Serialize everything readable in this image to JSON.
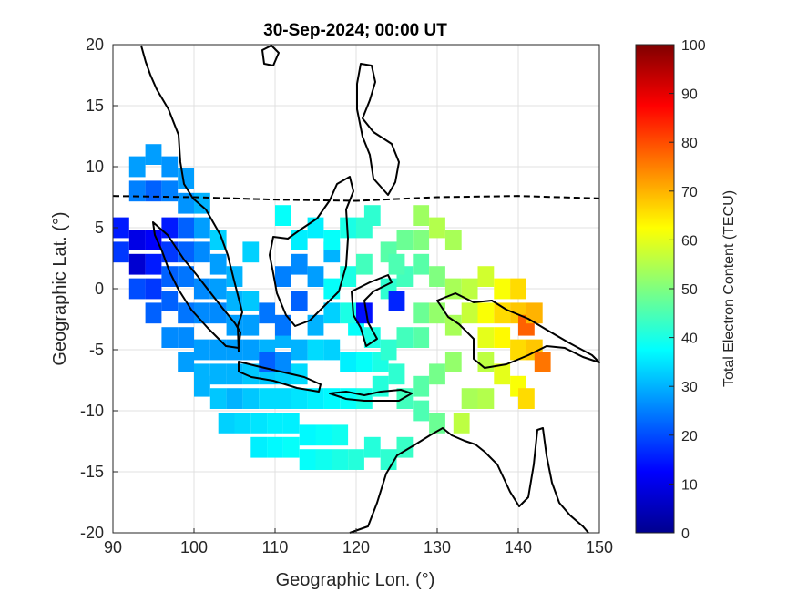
{
  "chart_data": {
    "type": "heatmap",
    "title": "30-Sep-2024; 00:00 UT",
    "xlabel": "Geographic Lon. (°)",
    "ylabel": "Geographic Lat. (°)",
    "xlim": [
      90,
      150
    ],
    "ylim": [
      -20,
      20
    ],
    "x_ticks": [
      90,
      100,
      110,
      120,
      130,
      140,
      150
    ],
    "y_ticks": [
      20,
      15,
      10,
      5,
      0,
      -5,
      -10,
      -15,
      -20
    ],
    "x_tick_labels": [
      "90",
      "100",
      "110",
      "120",
      "130",
      "140",
      "150"
    ],
    "y_tick_labels": [
      "20",
      "15",
      "10",
      "5",
      "0",
      "-5",
      "-10",
      "-15",
      "-20"
    ],
    "grid": true,
    "colormap": "jet",
    "colorbar": {
      "label": "Total Electron Content (TECU)",
      "range": [
        0,
        100
      ],
      "ticks": [
        0,
        10,
        20,
        30,
        40,
        50,
        60,
        70,
        80,
        90,
        100
      ],
      "tick_labels": [
        "0",
        "10",
        "20",
        "30",
        "40",
        "50",
        "60",
        "70",
        "80",
        "90",
        "100"
      ]
    },
    "magnetic_equator": [
      [
        90,
        7.6
      ],
      [
        100,
        7.5
      ],
      [
        110,
        7.3
      ],
      [
        120,
        7.2
      ],
      [
        130,
        7.5
      ],
      [
        140,
        7.6
      ],
      [
        150,
        7.4
      ]
    ],
    "cells": [
      [
        93,
        10,
        28
      ],
      [
        95,
        11,
        28
      ],
      [
        97,
        10,
        27
      ],
      [
        99,
        9,
        28
      ],
      [
        93,
        8,
        25
      ],
      [
        95,
        8,
        22
      ],
      [
        97,
        8,
        25
      ],
      [
        99,
        7,
        27
      ],
      [
        101,
        7,
        30
      ],
      [
        91,
        5,
        15
      ],
      [
        93,
        4,
        10
      ],
      [
        95,
        4,
        12
      ],
      [
        97,
        5,
        15
      ],
      [
        99,
        5,
        22
      ],
      [
        101,
        5,
        28
      ],
      [
        103,
        4,
        33
      ],
      [
        91,
        3,
        18
      ],
      [
        93,
        2,
        8
      ],
      [
        95,
        2,
        15
      ],
      [
        97,
        3,
        18
      ],
      [
        99,
        3,
        22
      ],
      [
        101,
        3,
        26
      ],
      [
        103,
        2,
        28
      ],
      [
        105,
        1,
        30
      ],
      [
        93,
        0,
        20
      ],
      [
        95,
        0,
        18
      ],
      [
        97,
        1,
        22
      ],
      [
        99,
        1,
        24
      ],
      [
        101,
        0,
        26
      ],
      [
        103,
        0,
        28
      ],
      [
        105,
        -1,
        30
      ],
      [
        107,
        -1,
        32
      ],
      [
        95,
        -2,
        22
      ],
      [
        97,
        -1,
        22
      ],
      [
        99,
        -2,
        24
      ],
      [
        101,
        -2,
        26
      ],
      [
        103,
        -2,
        26
      ],
      [
        105,
        -3,
        28
      ],
      [
        107,
        -3,
        28
      ],
      [
        109,
        -2,
        24
      ],
      [
        97,
        -4,
        26
      ],
      [
        99,
        -4,
        26
      ],
      [
        101,
        -5,
        28
      ],
      [
        103,
        -5,
        28
      ],
      [
        105,
        -5,
        28
      ],
      [
        107,
        -5,
        28
      ],
      [
        109,
        -5,
        30
      ],
      [
        111,
        -4,
        30
      ],
      [
        99,
        -6,
        28
      ],
      [
        101,
        -7,
        30
      ],
      [
        103,
        -7,
        30
      ],
      [
        105,
        -7,
        30
      ],
      [
        107,
        -7,
        32
      ],
      [
        109,
        -7,
        32
      ],
      [
        111,
        -7,
        33
      ],
      [
        113,
        -7,
        34
      ],
      [
        101,
        -8,
        30
      ],
      [
        103,
        -9,
        32
      ],
      [
        105,
        -9,
        30
      ],
      [
        107,
        -9,
        32
      ],
      [
        109,
        -9,
        34
      ],
      [
        111,
        -9,
        34
      ],
      [
        113,
        -9,
        35
      ],
      [
        115,
        -9,
        36
      ],
      [
        104,
        -11,
        33
      ],
      [
        106,
        -11,
        34
      ],
      [
        108,
        -11,
        35
      ],
      [
        110,
        -11,
        36
      ],
      [
        112,
        -11,
        36
      ],
      [
        114,
        -12,
        37
      ],
      [
        116,
        -12,
        38
      ],
      [
        118,
        -12,
        39
      ],
      [
        108,
        -13,
        36
      ],
      [
        110,
        -13,
        37
      ],
      [
        112,
        -13,
        38
      ],
      [
        114,
        -14,
        38
      ],
      [
        116,
        -14,
        39
      ],
      [
        118,
        -14,
        40
      ],
      [
        120,
        -14,
        41
      ],
      [
        122,
        -13,
        41
      ],
      [
        124,
        -14,
        42
      ],
      [
        126,
        -13,
        43
      ],
      [
        109,
        -6,
        22
      ],
      [
        111,
        -3,
        24
      ],
      [
        113,
        -1,
        22
      ],
      [
        115,
        1,
        28
      ],
      [
        117,
        3,
        30
      ],
      [
        113,
        2,
        26
      ],
      [
        111,
        1,
        25
      ],
      [
        107,
        3,
        33
      ],
      [
        111,
        6,
        38
      ],
      [
        113,
        4,
        36
      ],
      [
        115,
        5,
        36
      ],
      [
        117,
        4,
        38
      ],
      [
        119,
        5,
        40
      ],
      [
        121,
        5,
        42
      ],
      [
        121,
        2,
        44
      ],
      [
        119,
        1,
        40
      ],
      [
        117,
        0,
        38
      ],
      [
        115,
        -3,
        30
      ],
      [
        117,
        -5,
        33
      ],
      [
        119,
        -6,
        36
      ],
      [
        121,
        -6,
        38
      ],
      [
        123,
        -6,
        40
      ],
      [
        125,
        -7,
        42
      ],
      [
        123,
        -8,
        41
      ],
      [
        121,
        -9,
        40
      ],
      [
        119,
        -9,
        38
      ],
      [
        117,
        -9,
        37
      ],
      [
        122,
        6,
        42
      ],
      [
        124,
        3,
        46
      ],
      [
        126,
        4,
        48
      ],
      [
        128,
        4,
        50
      ],
      [
        128,
        6,
        53
      ],
      [
        130,
        5,
        55
      ],
      [
        132,
        4,
        54
      ],
      [
        124,
        0,
        42
      ],
      [
        125,
        -1,
        16
      ],
      [
        126,
        1,
        44
      ],
      [
        128,
        2,
        46
      ],
      [
        130,
        1,
        50
      ],
      [
        132,
        0,
        54
      ],
      [
        134,
        0,
        56
      ],
      [
        136,
        1,
        58
      ],
      [
        138,
        0,
        62
      ],
      [
        140,
        0,
        66
      ],
      [
        128,
        -2,
        48
      ],
      [
        130,
        -2,
        52
      ],
      [
        132,
        -3,
        54
      ],
      [
        134,
        -2,
        57
      ],
      [
        136,
        -2,
        62
      ],
      [
        138,
        -2,
        66
      ],
      [
        140,
        -2,
        68
      ],
      [
        141,
        -3,
        78
      ],
      [
        142,
        -2,
        70
      ],
      [
        136,
        -4,
        60
      ],
      [
        138,
        -4,
        63
      ],
      [
        140,
        -5,
        66
      ],
      [
        142,
        -5,
        68
      ],
      [
        143,
        -6,
        76
      ],
      [
        136,
        -6,
        56
      ],
      [
        138,
        -7,
        60
      ],
      [
        140,
        -8,
        62
      ],
      [
        132,
        -6,
        52
      ],
      [
        130,
        -7,
        49
      ],
      [
        128,
        -8,
        46
      ],
      [
        126,
        -9,
        44
      ],
      [
        128,
        -10,
        45
      ],
      [
        130,
        -11,
        48
      ],
      [
        134,
        -9,
        54
      ],
      [
        136,
        -9,
        55
      ],
      [
        133,
        -11,
        56
      ],
      [
        141,
        -9,
        66
      ],
      [
        128,
        -4,
        46
      ],
      [
        126,
        -4,
        44
      ],
      [
        124,
        -5,
        42
      ],
      [
        122,
        -4,
        40
      ],
      [
        120,
        -3,
        38
      ],
      [
        121,
        -2,
        14
      ],
      [
        125,
        2,
        45
      ],
      [
        119,
        -2,
        40
      ],
      [
        117,
        -2,
        33
      ],
      [
        115,
        -5,
        34
      ],
      [
        113,
        -5,
        30
      ],
      [
        111,
        -6,
        26
      ]
    ]
  }
}
